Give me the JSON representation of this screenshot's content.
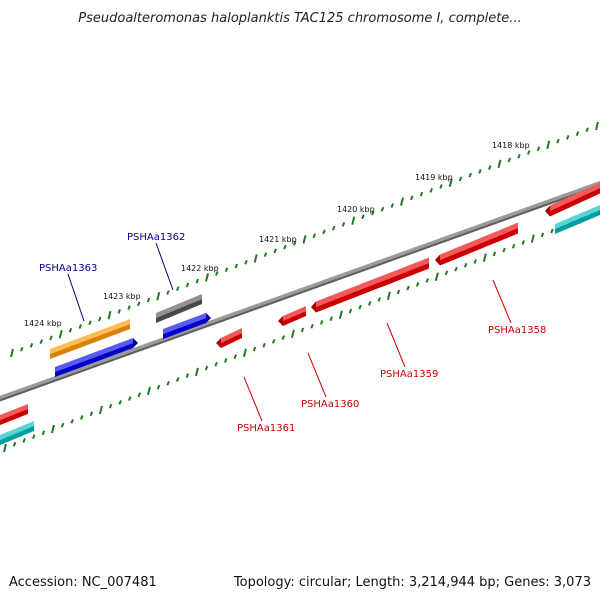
{
  "title": "Pseudoalteromonas haloplanktis TAC125 chromosome I, complete...",
  "footer": {
    "accession": "Accession: NC_007481",
    "summary": "Topology: circular; Length: 3,214,944 bp; Genes: 3,073"
  },
  "colors": {
    "tick": "#1f7a1f",
    "backbone": "#7f7f7f",
    "forward_label": "#00008b",
    "reverse_label": "#cc0000",
    "orange": "#ff9900",
    "blue": "#0000ee",
    "gray": "#555555",
    "red": "#ee0000",
    "cyan": "#00bbbb"
  },
  "ticks": [
    {
      "label": "1418 kbp"
    },
    {
      "label": "1419 kbp"
    },
    {
      "label": "1420 kbp"
    },
    {
      "label": "1421 kbp"
    },
    {
      "label": "1422 kbp"
    },
    {
      "label": "1423 kbp"
    },
    {
      "label": "1424 kbp"
    }
  ],
  "gene_labels": [
    {
      "name": "PSHAa1362",
      "strand": "forward"
    },
    {
      "name": "PSHAa1363",
      "strand": "forward"
    },
    {
      "name": "PSHAa1358",
      "strand": "reverse"
    },
    {
      "name": "PSHAa1359",
      "strand": "reverse"
    },
    {
      "name": "PSHAa1360",
      "strand": "reverse"
    },
    {
      "name": "PSHAa1361",
      "strand": "reverse"
    }
  ],
  "features": [
    {
      "id": "orange-feature",
      "color": "orange",
      "track": "forward-outer"
    },
    {
      "id": "blue-feature-1363",
      "color": "blue",
      "track": "forward-inner"
    },
    {
      "id": "gray-feature-1362",
      "color": "gray",
      "track": "forward-outer"
    },
    {
      "id": "blue-feature-1362",
      "color": "blue",
      "track": "forward-inner"
    },
    {
      "id": "red-feature-1361",
      "color": "red",
      "track": "reverse"
    },
    {
      "id": "red-feature-1360",
      "color": "red",
      "track": "reverse"
    },
    {
      "id": "red-feature-1359",
      "color": "red",
      "track": "reverse"
    },
    {
      "id": "red-feature-1358",
      "color": "red",
      "track": "reverse"
    },
    {
      "id": "red-feature-right",
      "color": "red",
      "track": "reverse"
    },
    {
      "id": "cyan-feature-right",
      "color": "cyan",
      "track": "reverse-inner"
    },
    {
      "id": "red-feature-left",
      "color": "red",
      "track": "reverse"
    },
    {
      "id": "cyan-feature-left",
      "color": "cyan",
      "track": "reverse-inner"
    }
  ]
}
